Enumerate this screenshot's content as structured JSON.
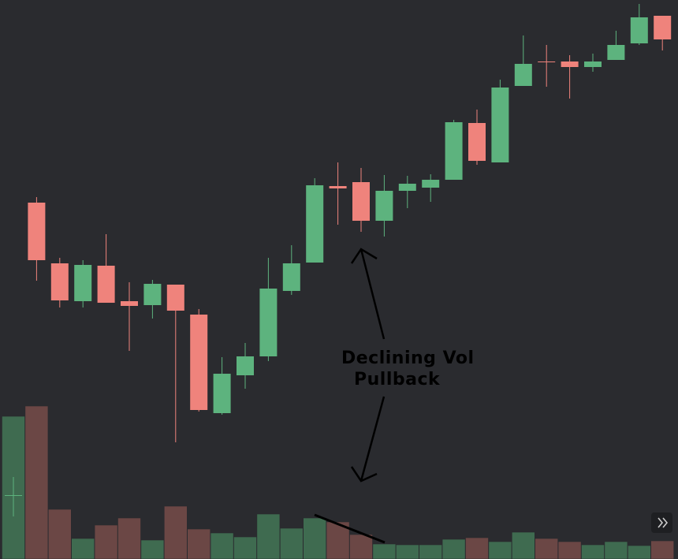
{
  "chart_data": {
    "type": "candlestick",
    "open": [
      81,
      452,
      375,
      327,
      372,
      327,
      322,
      348,
      310,
      185,
      233,
      257,
      340,
      376,
      473,
      478,
      429,
      467,
      471,
      481,
      553,
      503,
      600,
      631,
      631,
      624,
      633,
      654,
      689
    ],
    "high": [
      104,
      459,
      382,
      379,
      412,
      351,
      354,
      348,
      317,
      256,
      274,
      382,
      398,
      483,
      503,
      496,
      487,
      486,
      488,
      557,
      570,
      608,
      664,
      652,
      639,
      641,
      670,
      704,
      689
    ],
    "low": [
      54,
      353,
      319,
      319,
      325,
      264,
      305,
      148,
      187,
      183,
      216,
      251,
      335,
      376,
      424,
      415,
      409,
      445,
      453,
      481,
      500,
      503,
      600,
      599,
      584,
      618,
      633,
      652,
      645
    ],
    "close": [
      81,
      379,
      328,
      373,
      325,
      321,
      349,
      315,
      189,
      235,
      257,
      343,
      375,
      474,
      470,
      429,
      467,
      476,
      481,
      554,
      505,
      598,
      628,
      630,
      624,
      631,
      652,
      687,
      659
    ],
    "volume": [
      181,
      194,
      63,
      26,
      43,
      52,
      24,
      67,
      38,
      33,
      28,
      57,
      39,
      52,
      47,
      31,
      19,
      18,
      18,
      25,
      27,
      22,
      34,
      26,
      22,
      18,
      22,
      17,
      23
    ],
    "ylim": [
      0,
      709
    ],
    "volume_lim": [
      0,
      709
    ],
    "up_color": "#5db37e",
    "down_color": "#ef837c",
    "volume_up_color": "#3f6b50",
    "volume_down_color": "#6b4745",
    "annotations": [
      "Declining Vol",
      "Pullback"
    ]
  }
}
